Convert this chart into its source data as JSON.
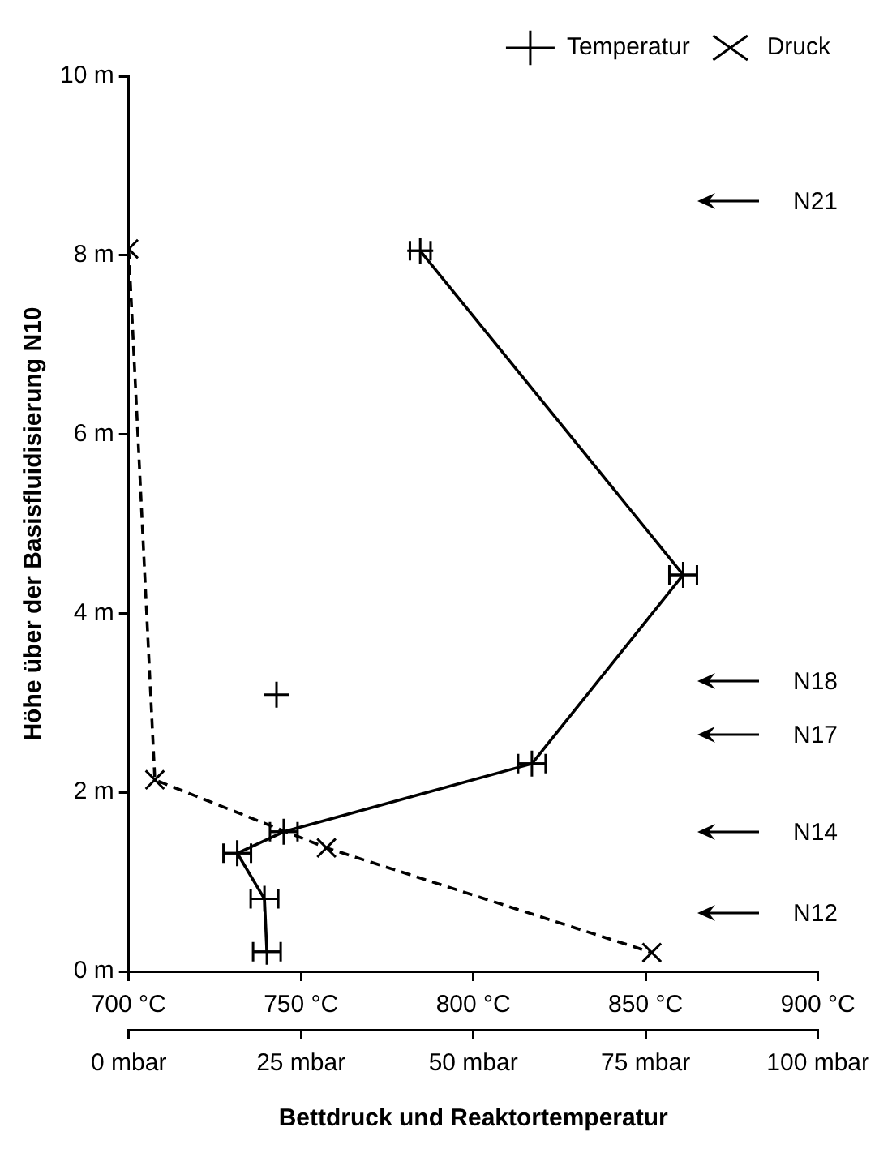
{
  "chart_data": {
    "type": "line",
    "xlabel": "Bettdruck und Reaktortemperatur",
    "ylabel": "Höhe über der Basisfluidisierung N10",
    "xlim": [
      700,
      900
    ],
    "xticks": [
      {
        "value": 700,
        "label": "700 °C"
      },
      {
        "value": 750,
        "label": "750 °C"
      },
      {
        "value": 800,
        "label": "800 °C"
      },
      {
        "value": 850,
        "label": "850 °C"
      },
      {
        "value": 900,
        "label": "900 °C"
      }
    ],
    "x2lim": [
      0,
      100
    ],
    "x2ticks": [
      {
        "value": 0,
        "label": "0 mbar"
      },
      {
        "value": 25,
        "label": "25 mbar"
      },
      {
        "value": 50,
        "label": "50 mbar"
      },
      {
        "value": 75,
        "label": "75 mbar"
      },
      {
        "value": 100,
        "label": "100 mbar"
      }
    ],
    "ylim": [
      0,
      10
    ],
    "yticks": [
      {
        "value": 0,
        "label": "0 m"
      },
      {
        "value": 2,
        "label": "2 m"
      },
      {
        "value": 4,
        "label": "4 m"
      },
      {
        "value": 6,
        "label": "6 m"
      },
      {
        "value": 8,
        "label": "8 m"
      },
      {
        "value": 10,
        "label": "10 m"
      }
    ],
    "grid": false,
    "legend": "top right",
    "series": [
      {
        "name": "Temperatur",
        "color": "#000000",
        "marker": "cross",
        "line_style": "solid",
        "x": [
          784.6,
          860.9,
          817,
          745,
          731.5,
          739.4,
          740.1
        ],
        "values": [
          8.05,
          4.43,
          2.32,
          1.56,
          1.32,
          0.81,
          0.22
        ],
        "xerrors": [
          3,
          4,
          4,
          4,
          4,
          4,
          4
        ]
      },
      {
        "name": "Druck",
        "type": "line",
        "axis": "x2",
        "color": "#000000",
        "marker": "x",
        "line_style": "dashed",
        "x": [
          0,
          3.8,
          28.7,
          75.9
        ],
        "values": [
          8.07,
          2.14,
          1.38,
          0.21
        ]
      },
      {
        "type": "scatter",
        "color": "#000000",
        "marker": "cross",
        "x": [
          742.9
        ],
        "values": [
          3.09
        ]
      }
    ],
    "annotations": [
      "N21",
      "N18",
      "N17",
      "N14",
      "N12"
    ]
  }
}
